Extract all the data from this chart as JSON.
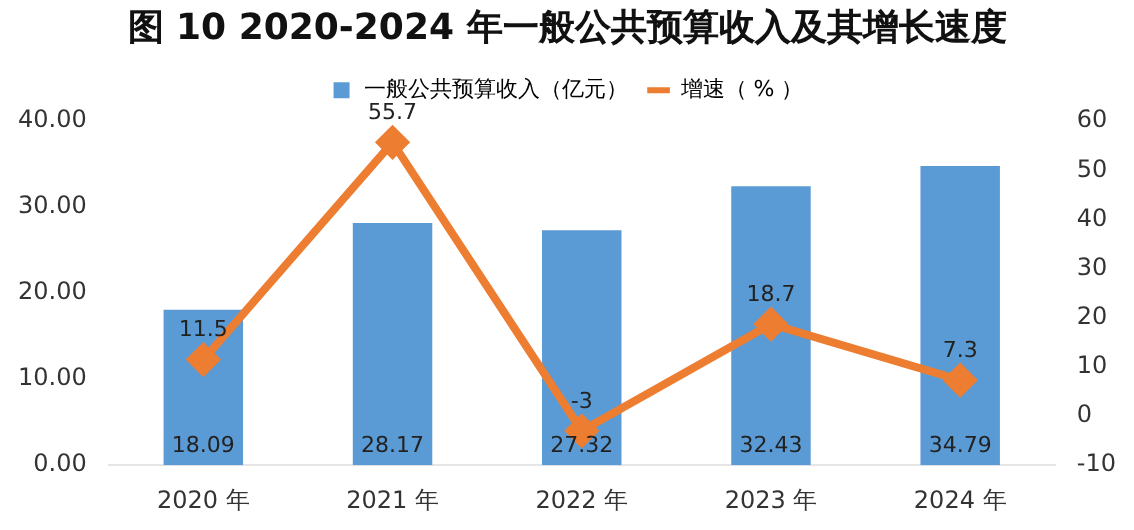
{
  "chart_data": {
    "type": "bar",
    "title": "图 10 2020-2024 年一般公共预算收入及其增长速度",
    "categories": [
      "2020 年",
      "2021 年",
      "2022 年",
      "2023 年",
      "2024 年"
    ],
    "series": [
      {
        "name": "一般公共预算收入（亿元）",
        "color": "#5b9bd5",
        "values": [
          18.09,
          28.17,
          27.32,
          32.43,
          34.79
        ]
      },
      {
        "name": "增速（ % ）",
        "type": "line",
        "axis": "y2",
        "color": "#ed7d31",
        "values": [
          11.5,
          55.7,
          -3,
          18.7,
          7.3
        ]
      }
    ],
    "ylim": [
      0,
      40
    ],
    "yticks": [
      {
        "value": 0,
        "label": "0.00"
      },
      {
        "value": 10,
        "label": "10.00"
      },
      {
        "value": 20,
        "label": "20.00"
      },
      {
        "value": 30,
        "label": "30.00"
      },
      {
        "value": 40,
        "label": "40.00"
      }
    ],
    "y2lim": [
      -10,
      60
    ],
    "y2ticks": [
      -10,
      0,
      10,
      20,
      30,
      40,
      50,
      60
    ],
    "data_labels": true,
    "legend": "top",
    "marker": "diamond",
    "line_style": "solid",
    "grid": false
  }
}
